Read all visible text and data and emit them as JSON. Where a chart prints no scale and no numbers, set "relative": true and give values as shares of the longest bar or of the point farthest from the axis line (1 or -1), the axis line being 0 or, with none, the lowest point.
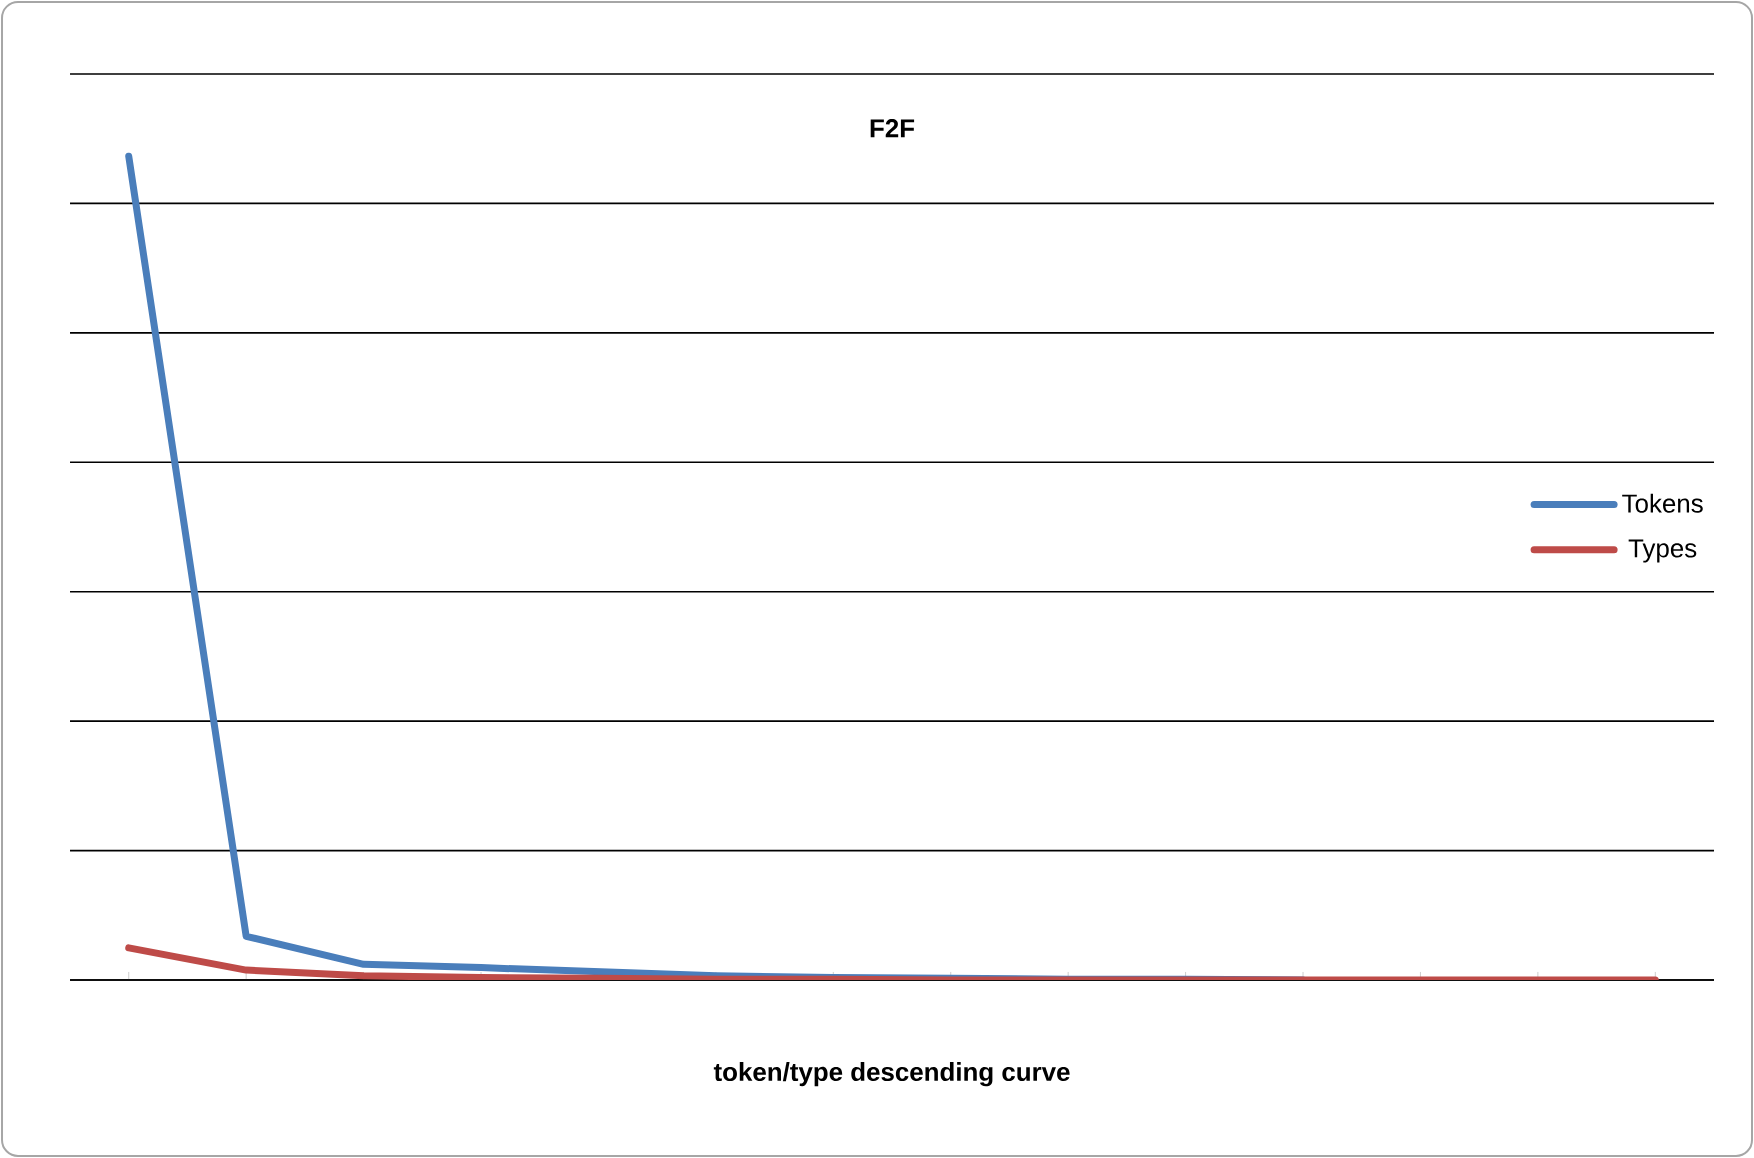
{
  "chart_data": {
    "type": "line",
    "title": "F2F",
    "xlabel": "token/type  descending curve",
    "relative": true,
    "grid": "y",
    "legend": "right",
    "marker": "none",
    "line_style": "solid",
    "categories": [
      null,
      null,
      null,
      null,
      null,
      null,
      null,
      null,
      null,
      null,
      null,
      null,
      null,
      null
    ],
    "series": [
      {
        "name": "Tokens",
        "color": "#4a7ebb",
        "values": [
          1,
          0.053,
          0.019,
          0.015,
          0.01,
          0.005,
          0.003,
          0.002,
          0.001,
          0.001,
          0,
          null,
          null,
          null
        ]
      },
      {
        "name": "Types",
        "color": "#be4b48",
        "values": [
          0.039,
          0.012,
          0.005,
          0.003,
          0.002,
          0.001,
          0.001,
          0,
          0,
          0,
          0,
          0,
          0,
          0
        ]
      }
    ]
  }
}
